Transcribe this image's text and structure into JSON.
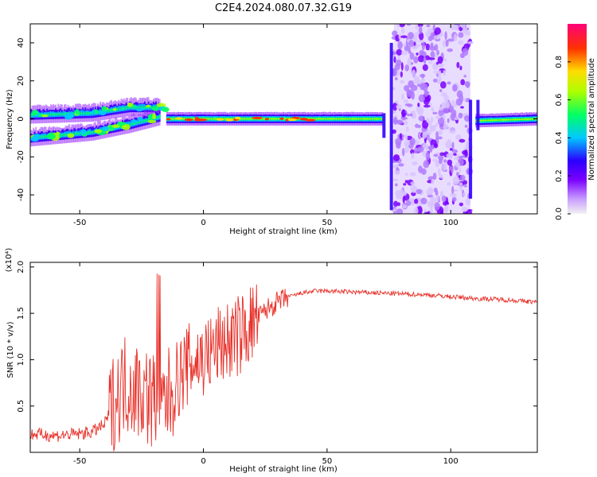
{
  "figure": {
    "title": "C2E4.2024.080.07.32.G19"
  },
  "chart_data": [
    {
      "type": "heatmap",
      "xlabel": "Height of straight line (km)",
      "ylabel": "Frequency (Hz)",
      "xlim": [
        -70,
        135
      ],
      "ylim": [
        -50,
        50
      ],
      "xticks": [
        -50,
        0,
        50,
        100
      ],
      "yticks": [
        -40,
        -20,
        0,
        20,
        40
      ],
      "colorbar": {
        "label": "Normalized spectral amplitude",
        "range": [
          0,
          1
        ],
        "ticks": [
          "0.0",
          "0.2",
          "0.4",
          "0.6",
          "0.8"
        ],
        "colormap": [
          "#f2f2f2",
          "#9b30ff",
          "#3300ff",
          "#00c8ff",
          "#00ff66",
          "#aaff00",
          "#ffdd00",
          "#ff3300",
          "#ff0077"
        ]
      },
      "features": [
        {
          "name": "upper branch",
          "x": [
            -70,
            -45,
            -30,
            -18
          ],
          "freq": [
            2,
            3,
            6,
            6
          ]
        },
        {
          "name": "lower branch",
          "x": [
            -70,
            -45,
            -30,
            -18
          ],
          "freq": [
            -10,
            -7,
            -3,
            1
          ]
        },
        {
          "name": "main band",
          "x": [
            -15,
            72
          ],
          "freq": [
            0,
            0
          ]
        },
        {
          "name": "noise region",
          "x": [
            77,
            108
          ],
          "freq": [
            -50,
            50
          ]
        },
        {
          "name": "main band",
          "x": [
            110,
            135
          ],
          "freq": [
            -1,
            0
          ]
        }
      ]
    },
    {
      "type": "line",
      "xlabel": "Height of straight line (km)",
      "ylabel": "SNR (10 * v/v)",
      "yscale_label": "(x10⁴)",
      "xlim": [
        -70,
        135
      ],
      "ylim": [
        0,
        2.05
      ],
      "xticks": [
        -50,
        0,
        50,
        100
      ],
      "yticks": [
        "0.5",
        "1.0",
        "1.5",
        "2.0"
      ],
      "series": [
        {
          "color": "#e8312a",
          "x": [
            -70,
            -60,
            -50,
            -45,
            -40,
            -36,
            -32,
            -28,
            -24,
            -20,
            -17,
            -14,
            -10,
            -6,
            -2,
            2,
            6,
            10,
            14,
            18,
            22,
            26,
            30,
            35,
            40,
            45,
            50,
            60,
            70,
            80,
            90,
            100,
            110,
            120,
            135
          ],
          "values": [
            0.2,
            0.18,
            0.2,
            0.22,
            0.3,
            0.55,
            0.75,
            0.7,
            0.65,
            0.55,
            0.5,
            0.6,
            0.8,
            0.95,
            1.0,
            1.05,
            1.15,
            1.2,
            1.25,
            1.35,
            1.45,
            1.55,
            1.62,
            1.68,
            1.72,
            1.74,
            1.74,
            1.73,
            1.72,
            1.71,
            1.7,
            1.68,
            1.66,
            1.65,
            1.62
          ]
        }
      ]
    }
  ]
}
